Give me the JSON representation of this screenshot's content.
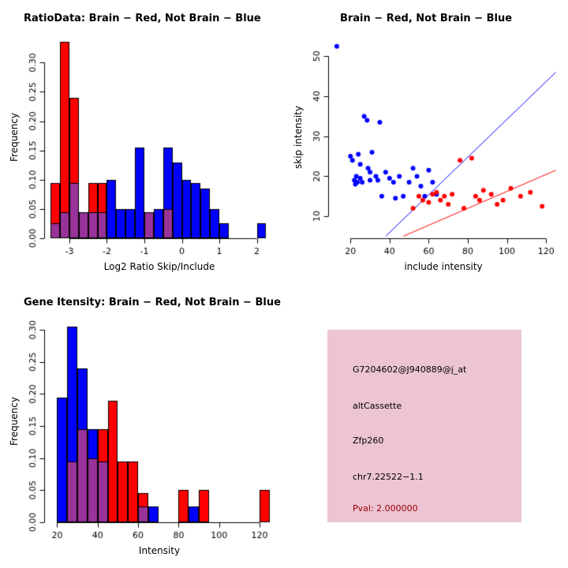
{
  "colors": {
    "red": "#ff0000",
    "blue": "#0000ff",
    "overlap": "#993399",
    "axis": "#000000",
    "infobox_bg": "#ecc4d3",
    "pval_color": "#990000"
  },
  "panels": {
    "ratioHist": {
      "title": "RatioData: Brain − Red, Not Brain − Blue",
      "xlabel": "Log2 Ratio Skip/Include",
      "ylabel": "Frequency"
    },
    "scatter": {
      "title": "Brain − Red, Not Brain − Blue",
      "xlabel": "include intensity",
      "ylabel": "skip intensity"
    },
    "geneHist": {
      "title": "Gene Itensity: Brain − Red, Not Brain − Blue",
      "xlabel": "Intensity",
      "ylabel": "Frequency"
    }
  },
  "infoBox": {
    "probe_id": "G7204602@J940889@j_at",
    "event_type": "altCassette",
    "gene": "Zfp260",
    "location": "chr7.22522−1.1",
    "pval": "Pval: 2.000000"
  },
  "chart_data": [
    {
      "type": "bar",
      "subtype": "overlaid-histogram",
      "title": "RatioData: Brain − Red, Not Brain − Blue",
      "xlabel": "Log2 Ratio Skip/Include",
      "ylabel": "Frequency",
      "bin_start": -3.5,
      "bin_width": 0.25,
      "xlim": [
        -3.65,
        2.45
      ],
      "ylim": [
        0,
        0.345
      ],
      "xticks": [
        -3,
        -2,
        -1,
        0,
        1,
        2
      ],
      "yticks": [
        0,
        0.05,
        0.1,
        0.15,
        0.2,
        0.25,
        0.3
      ],
      "ytick_decimals": 2,
      "grid": false,
      "legend": "colors explained in title (Brain=red, Not Brain=blue, overlap=purple)",
      "series": [
        {
          "name": "Brain (red)",
          "values": [
            0.095,
            0.335,
            0.24,
            0.045,
            0.095,
            0.095,
            0,
            0,
            0,
            0,
            0.045,
            0,
            0.05,
            0,
            0,
            0,
            0,
            0,
            0,
            0,
            0,
            0,
            0
          ]
        },
        {
          "name": "Not Brain (blue)",
          "values": [
            0.025,
            0.045,
            0.095,
            0.045,
            0.045,
            0.045,
            0.1,
            0.05,
            0.05,
            0.155,
            0.045,
            0.05,
            0.155,
            0.13,
            0.1,
            0.095,
            0.085,
            0.05,
            0.025,
            0,
            0,
            0,
            0.025
          ]
        }
      ]
    },
    {
      "type": "scatter",
      "title": "Brain − Red, Not Brain − Blue",
      "xlabel": "include intensity",
      "ylabel": "skip intensity",
      "xlim": [
        9,
        126
      ],
      "ylim": [
        4.5,
        55
      ],
      "xticks": [
        20,
        40,
        60,
        80,
        100,
        120
      ],
      "yticks": [
        10,
        20,
        30,
        40,
        50
      ],
      "grid": false,
      "series": [
        {
          "name": "Brain (red)",
          "points": [
            [
              52,
              12
            ],
            [
              55,
              15
            ],
            [
              57,
              14
            ],
            [
              60,
              13.5
            ],
            [
              62,
              15.5
            ],
            [
              64,
              16
            ],
            [
              66,
              14
            ],
            [
              68,
              15
            ],
            [
              70,
              13
            ],
            [
              72,
              15.5
            ],
            [
              76,
              24
            ],
            [
              78,
              12
            ],
            [
              82,
              24.5
            ],
            [
              84,
              15
            ],
            [
              86,
              14
            ],
            [
              88,
              16.5
            ],
            [
              92,
              15.5
            ],
            [
              95,
              13
            ],
            [
              98,
              14
            ],
            [
              102,
              17
            ],
            [
              107,
              15
            ],
            [
              112,
              16
            ],
            [
              118,
              12.5
            ]
          ]
        },
        {
          "name": "Not Brain (blue)",
          "points": [
            [
              13,
              52.5
            ],
            [
              20,
              25
            ],
            [
              21,
              24
            ],
            [
              22,
              19
            ],
            [
              22.5,
              18
            ],
            [
              23,
              20
            ],
            [
              23.5,
              18.5
            ],
            [
              24,
              25.5
            ],
            [
              25,
              23
            ],
            [
              25,
              19.5
            ],
            [
              26,
              18.5
            ],
            [
              27,
              35
            ],
            [
              28.5,
              34
            ],
            [
              29,
              22
            ],
            [
              30,
              21
            ],
            [
              30,
              19
            ],
            [
              31,
              26
            ],
            [
              33,
              20
            ],
            [
              34,
              19
            ],
            [
              35,
              33.5
            ],
            [
              36,
              15
            ],
            [
              38,
              21
            ],
            [
              40,
              19.5
            ],
            [
              42,
              18.5
            ],
            [
              43,
              14.5
            ],
            [
              45,
              20
            ],
            [
              47,
              15
            ],
            [
              50,
              18.5
            ],
            [
              52,
              22
            ],
            [
              54,
              20
            ],
            [
              56,
              17.5
            ],
            [
              58,
              15
            ],
            [
              60,
              21.5
            ],
            [
              62,
              18.5
            ],
            [
              64,
              15.5
            ]
          ]
        }
      ],
      "lines": [
        {
          "color": "blue",
          "x1": 38,
          "y1": 5,
          "x2": 125,
          "y2": 46
        },
        {
          "color": "red",
          "x1": 47,
          "y1": 5,
          "x2": 125,
          "y2": 21.5
        }
      ]
    },
    {
      "type": "bar",
      "subtype": "overlaid-histogram",
      "title": "Gene Itensity: Brain − Red, Not Brain − Blue",
      "xlabel": "Intensity",
      "ylabel": "Frequency",
      "bin_start": 20,
      "bin_width": 5,
      "xlim": [
        14,
        127
      ],
      "ylim": [
        0,
        0.315
      ],
      "xticks": [
        20,
        40,
        60,
        80,
        100,
        120
      ],
      "yticks": [
        0,
        0.05,
        0.1,
        0.15,
        0.2,
        0.25,
        0.3
      ],
      "ytick_decimals": 2,
      "grid": false,
      "series": [
        {
          "name": "Brain (red)",
          "values": [
            0,
            0.095,
            0.145,
            0.1,
            0.145,
            0.19,
            0.095,
            0.095,
            0.045,
            0,
            0,
            0,
            0.05,
            0,
            0.05,
            0,
            0,
            0,
            0,
            0,
            0.05
          ]
        },
        {
          "name": "Not Brain (blue)",
          "values": [
            0.195,
            0.305,
            0.24,
            0.145,
            0.095,
            0,
            0,
            0,
            0.025,
            0.025,
            0,
            0,
            0,
            0.025,
            0,
            0,
            0,
            0,
            0,
            0,
            0
          ]
        }
      ]
    }
  ]
}
